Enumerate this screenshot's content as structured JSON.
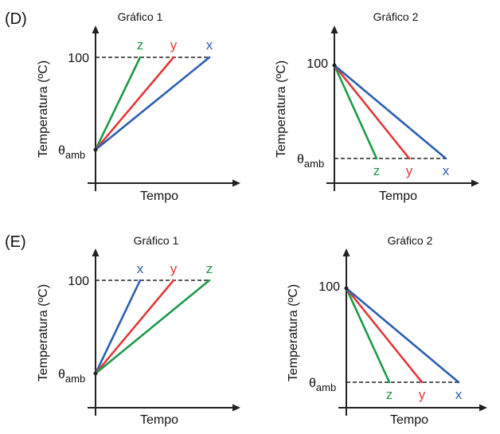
{
  "colors": {
    "x": "#2a5fb0",
    "y": "#e23a3a",
    "z": "#1e9a4a",
    "axis": "#222222"
  },
  "common": {
    "ylabel": "Temperatura (ºC)",
    "xlabel": "Tempo",
    "tick_top": "100",
    "tick_bottom_base": "θ",
    "tick_bottom_sub": "amb"
  },
  "sections": [
    {
      "label": "(D)",
      "charts": [
        {
          "title": "Gráfico 1",
          "type": "heating",
          "order": [
            "z",
            "y",
            "x"
          ]
        },
        {
          "title": "Gráfico 2",
          "type": "cooling",
          "order": [
            "z",
            "y",
            "x"
          ]
        }
      ]
    },
    {
      "label": "(E)",
      "charts": [
        {
          "title": "Gráfico 1",
          "type": "heating",
          "order": [
            "x",
            "y",
            "z"
          ]
        },
        {
          "title": "Gráfico 2",
          "type": "cooling",
          "order": [
            "z",
            "y",
            "x"
          ]
        }
      ]
    }
  ]
}
